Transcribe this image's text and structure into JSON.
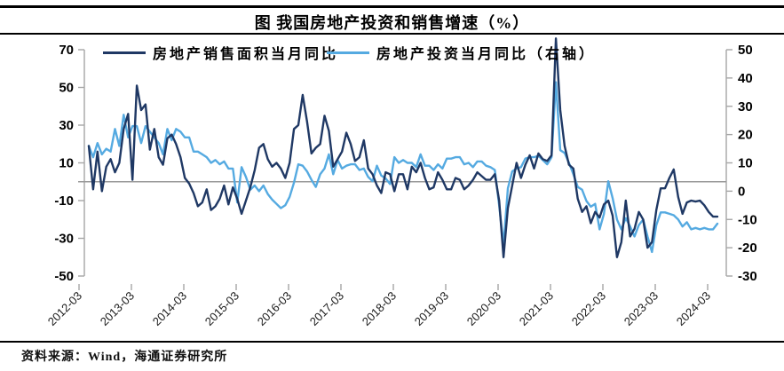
{
  "title": "图 我国房地产投资和销售增速（%）",
  "source_note": "资料来源：Wind，海通证券研究所",
  "colors": {
    "sales_line": "#1F3864",
    "investment_line": "#55AAE1",
    "zero_line": "#9a9a9a",
    "axis_line": "#a6a6a6",
    "tick_label": "#000000",
    "x_label": "#1a1a1a"
  },
  "chart_data": {
    "type": "line",
    "title": "图 我国房地产投资和销售增速（%）",
    "x_start": "2012-03",
    "x_end": "2024-03",
    "x_tick_labels": [
      "2012-03",
      "2013-03",
      "2014-03",
      "2015-03",
      "2016-03",
      "2017-03",
      "2018-03",
      "2019-03",
      "2020-03",
      "2021-03",
      "2022-03",
      "2023-03",
      "2024-03"
    ],
    "left_axis": {
      "ticks": [
        70,
        50,
        30,
        10,
        -10,
        -30,
        -50
      ],
      "labels": [
        "70",
        "50",
        "30",
        "10",
        "-10",
        "-30",
        "-50"
      ],
      "range": [
        -50,
        70
      ]
    },
    "right_axis": {
      "ticks": [
        50,
        40,
        30,
        20,
        10,
        0,
        -10,
        -20,
        -30
      ],
      "labels": [
        "50",
        "40",
        "30",
        "20",
        "10",
        "0",
        "-10",
        "-20",
        "-30"
      ],
      "range": [
        -30,
        50
      ]
    },
    "zero_line": true,
    "legend_position": "top",
    "series": [
      {
        "name": "房地产销售面积当月同比",
        "axis": "left",
        "color": "#1F3864",
        "monthly_from": "2012-03",
        "values": [
          19,
          -4,
          16,
          -5,
          8,
          12,
          5,
          10,
          28,
          36,
          1,
          51,
          38,
          41,
          17,
          28,
          13,
          9,
          23,
          25,
          20,
          13,
          2,
          -1,
          -6,
          -13,
          -11,
          -4,
          -15,
          -13,
          -9,
          -2,
          -12,
          -3,
          -9,
          -17,
          -10,
          -3,
          6,
          18,
          20,
          12,
          8,
          10,
          7,
          2,
          10,
          28,
          30,
          46,
          32,
          15,
          18,
          20,
          35,
          27,
          8,
          12,
          16,
          26,
          20,
          11,
          13,
          22,
          7,
          4,
          -2,
          -6,
          5,
          4,
          -5,
          4,
          4,
          -4,
          8,
          5,
          10,
          2,
          -4,
          -3,
          5,
          1,
          -4,
          -4,
          2,
          1,
          -4,
          -2,
          1,
          5,
          3,
          1,
          1,
          4,
          -10,
          -40,
          -14,
          -2,
          10,
          2,
          9,
          14,
          7,
          15,
          12,
          11,
          14,
          76,
          38,
          19,
          9,
          7,
          -9,
          -16,
          -13,
          -22,
          -16,
          -19,
          -12,
          -10,
          -18,
          -40,
          -32,
          -10,
          -29,
          -25,
          -16,
          -20,
          -35,
          -32,
          -15,
          -3.5,
          -3.5,
          2,
          6.5,
          -8,
          -17,
          -11,
          -10,
          -10.5,
          -10,
          -12.5,
          -16,
          -18.5,
          -18.5
        ]
      },
      {
        "name": "房地产投资当月同比（右轴）",
        "axis": "right",
        "color": "#55AAE1",
        "monthly_from": "2012-03",
        "values": [
          16,
          12,
          17,
          13,
          15,
          14,
          22,
          16,
          27,
          19,
          23,
          23,
          17,
          23,
          21,
          19,
          17,
          13,
          22,
          18,
          22,
          21,
          19,
          19,
          14,
          14,
          13,
          12,
          10,
          11,
          9.5,
          10.5,
          8,
          8,
          -4,
          8.5,
          5,
          0.5,
          2,
          0,
          2,
          -1,
          -3,
          -4.5,
          -6,
          -5,
          -2,
          3,
          9.5,
          9,
          7,
          4,
          1.5,
          6,
          8,
          13,
          6,
          11,
          8,
          9,
          9.5,
          9.5,
          7.5,
          8,
          5,
          3.5,
          9,
          5.5,
          4.5,
          2.5,
          12,
          10,
          11,
          10,
          10,
          8.5,
          13,
          9,
          9,
          7.5,
          9.5,
          8,
          11.5,
          11.5,
          12,
          12,
          9.5,
          10,
          8.5,
          10.5,
          10.5,
          9,
          8.5,
          7.5,
          -5,
          -19,
          1,
          7,
          8,
          8.5,
          11.5,
          12,
          12,
          12.5,
          11,
          9.5,
          12,
          38.5,
          14.5,
          13.5,
          10,
          6,
          1.5,
          0.5,
          -3.5,
          -5.5,
          -4.5,
          -13.5,
          -8,
          3.5,
          -2.5,
          -10,
          -13.5,
          -9.5,
          -12.5,
          -16,
          -12,
          -10,
          -16,
          -21.5,
          -12,
          -7.5,
          -7.5,
          -8,
          -8.5,
          -10,
          -12.5,
          -11,
          -13.5,
          -13,
          -13.5,
          -13,
          -13.5,
          -13.5,
          -11.5
        ]
      }
    ]
  }
}
